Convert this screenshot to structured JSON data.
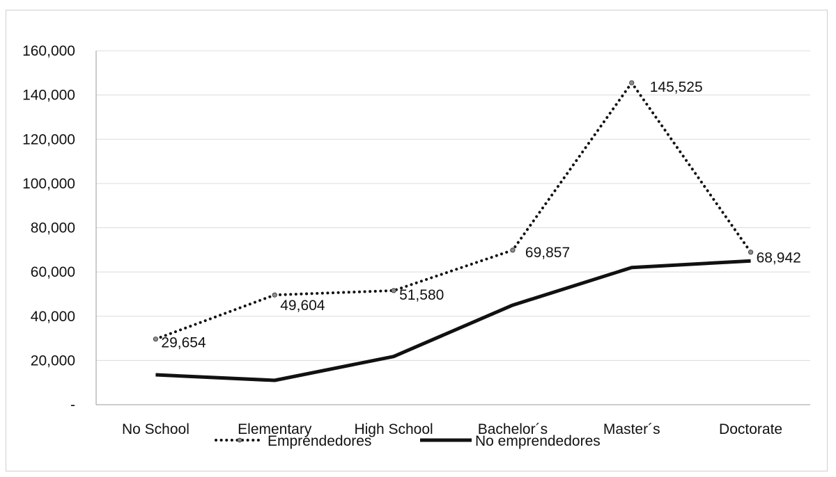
{
  "chart_data": {
    "type": "line",
    "title": "",
    "xlabel": "",
    "ylabel": "",
    "categories": [
      "No School",
      "Elementary",
      "High School",
      "Bachelor´s",
      "Master´s",
      "Doctorate"
    ],
    "ylim": [
      0,
      160000
    ],
    "yticks": [
      0,
      20000,
      40000,
      60000,
      80000,
      100000,
      120000,
      140000,
      160000
    ],
    "ytick_labels": [
      "-",
      "20,000",
      "40,000",
      "60,000",
      "80,000",
      "100,000",
      "120,000",
      "140,000",
      "160,000"
    ],
    "grid": true,
    "legend_position": "bottom",
    "series": [
      {
        "name": "Emprendedores",
        "style": "dotted",
        "color": "#111111",
        "values": [
          29654,
          49604,
          51580,
          69857,
          145525,
          68942
        ],
        "labels": [
          "29,654",
          "49,604",
          "51,580",
          "69,857",
          "145,525",
          "68,942"
        ]
      },
      {
        "name": "No emprendedores",
        "style": "solid",
        "color": "#111111",
        "values": [
          13500,
          11000,
          21800,
          45000,
          62000,
          65000
        ]
      }
    ]
  }
}
